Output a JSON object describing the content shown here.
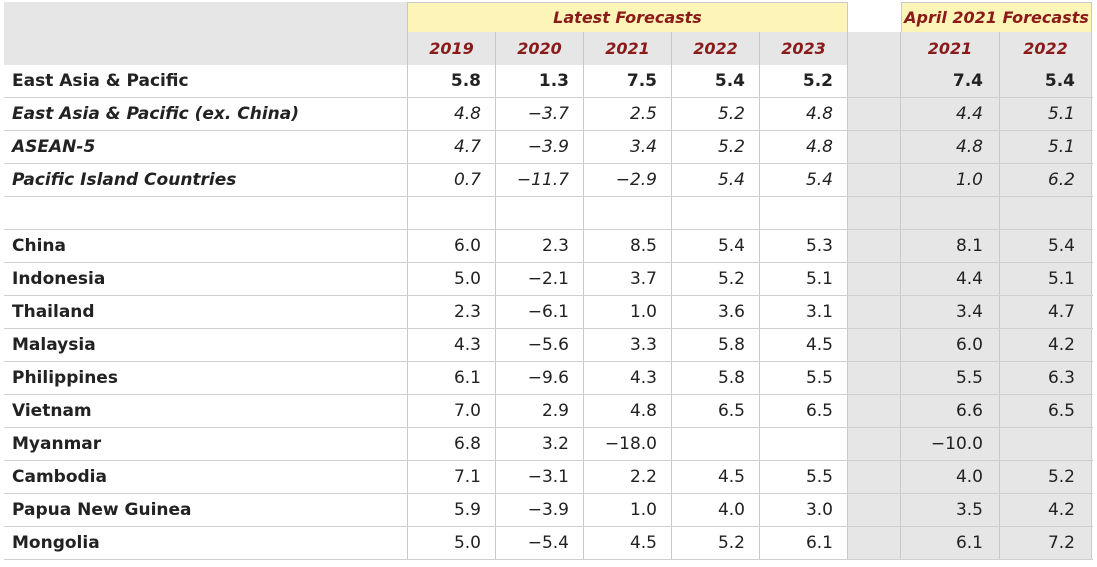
{
  "header": {
    "latest_label": "Latest Forecasts",
    "april_label": "April 2021 Forecasts",
    "latest_years": [
      "2019",
      "2020",
      "2021",
      "2022",
      "2023"
    ],
    "april_years": [
      "2021",
      "2022"
    ]
  },
  "rows": [
    {
      "name": "East Asia & Pacific",
      "style": "bold",
      "latest": [
        "5.8",
        "1.3",
        "7.5",
        "5.4",
        "5.2"
      ],
      "april": [
        "7.4",
        "5.4"
      ]
    },
    {
      "name": "East Asia & Pacific (ex. China)",
      "style": "ital",
      "latest": [
        "4.8",
        "−3.7",
        "2.5",
        "5.2",
        "4.8"
      ],
      "april": [
        "4.4",
        "5.1"
      ]
    },
    {
      "name": "ASEAN-5",
      "style": "ital",
      "latest": [
        "4.7",
        "−3.9",
        "3.4",
        "5.2",
        "4.8"
      ],
      "april": [
        "4.8",
        "5.1"
      ]
    },
    {
      "name": "Pacific Island Countries",
      "style": "ital",
      "latest": [
        "0.7",
        "−11.7",
        "−2.9",
        "5.4",
        "5.4"
      ],
      "april": [
        "1.0",
        "6.2"
      ]
    },
    {
      "name": "",
      "style": "plain",
      "latest": [
        "",
        "",
        "",
        "",
        ""
      ],
      "april": [
        "",
        ""
      ]
    },
    {
      "name": "China",
      "style": "plain",
      "latest": [
        "6.0",
        "2.3",
        "8.5",
        "5.4",
        "5.3"
      ],
      "april": [
        "8.1",
        "5.4"
      ]
    },
    {
      "name": "Indonesia",
      "style": "plain",
      "latest": [
        "5.0",
        "−2.1",
        "3.7",
        "5.2",
        "5.1"
      ],
      "april": [
        "4.4",
        "5.1"
      ]
    },
    {
      "name": "Thailand",
      "style": "plain",
      "latest": [
        "2.3",
        "−6.1",
        "1.0",
        "3.6",
        "3.1"
      ],
      "april": [
        "3.4",
        "4.7"
      ]
    },
    {
      "name": "Malaysia",
      "style": "plain",
      "latest": [
        "4.3",
        "−5.6",
        "3.3",
        "5.8",
        "4.5"
      ],
      "april": [
        "6.0",
        "4.2"
      ]
    },
    {
      "name": "Philippines",
      "style": "plain",
      "latest": [
        "6.1",
        "−9.6",
        "4.3",
        "5.8",
        "5.5"
      ],
      "april": [
        "5.5",
        "6.3"
      ]
    },
    {
      "name": "Vietnam",
      "style": "plain",
      "latest": [
        "7.0",
        "2.9",
        "4.8",
        "6.5",
        "6.5"
      ],
      "april": [
        "6.6",
        "6.5"
      ]
    },
    {
      "name": "Myanmar",
      "style": "plain",
      "latest": [
        "6.8",
        "3.2",
        "−18.0",
        "",
        ""
      ],
      "april": [
        "−10.0",
        ""
      ]
    },
    {
      "name": "Cambodia",
      "style": "plain",
      "latest": [
        "7.1",
        "−3.1",
        "2.2",
        "4.5",
        "5.5"
      ],
      "april": [
        "4.0",
        "5.2"
      ]
    },
    {
      "name": "Papua New Guinea",
      "style": "plain",
      "latest": [
        "5.9",
        "−3.9",
        "1.0",
        "4.0",
        "3.0"
      ],
      "april": [
        "3.5",
        "4.2"
      ]
    },
    {
      "name": "Mongolia",
      "style": "plain",
      "latest": [
        "5.0",
        "−5.4",
        "4.5",
        "5.2",
        "6.1"
      ],
      "april": [
        "6.1",
        "7.2"
      ]
    }
  ]
}
